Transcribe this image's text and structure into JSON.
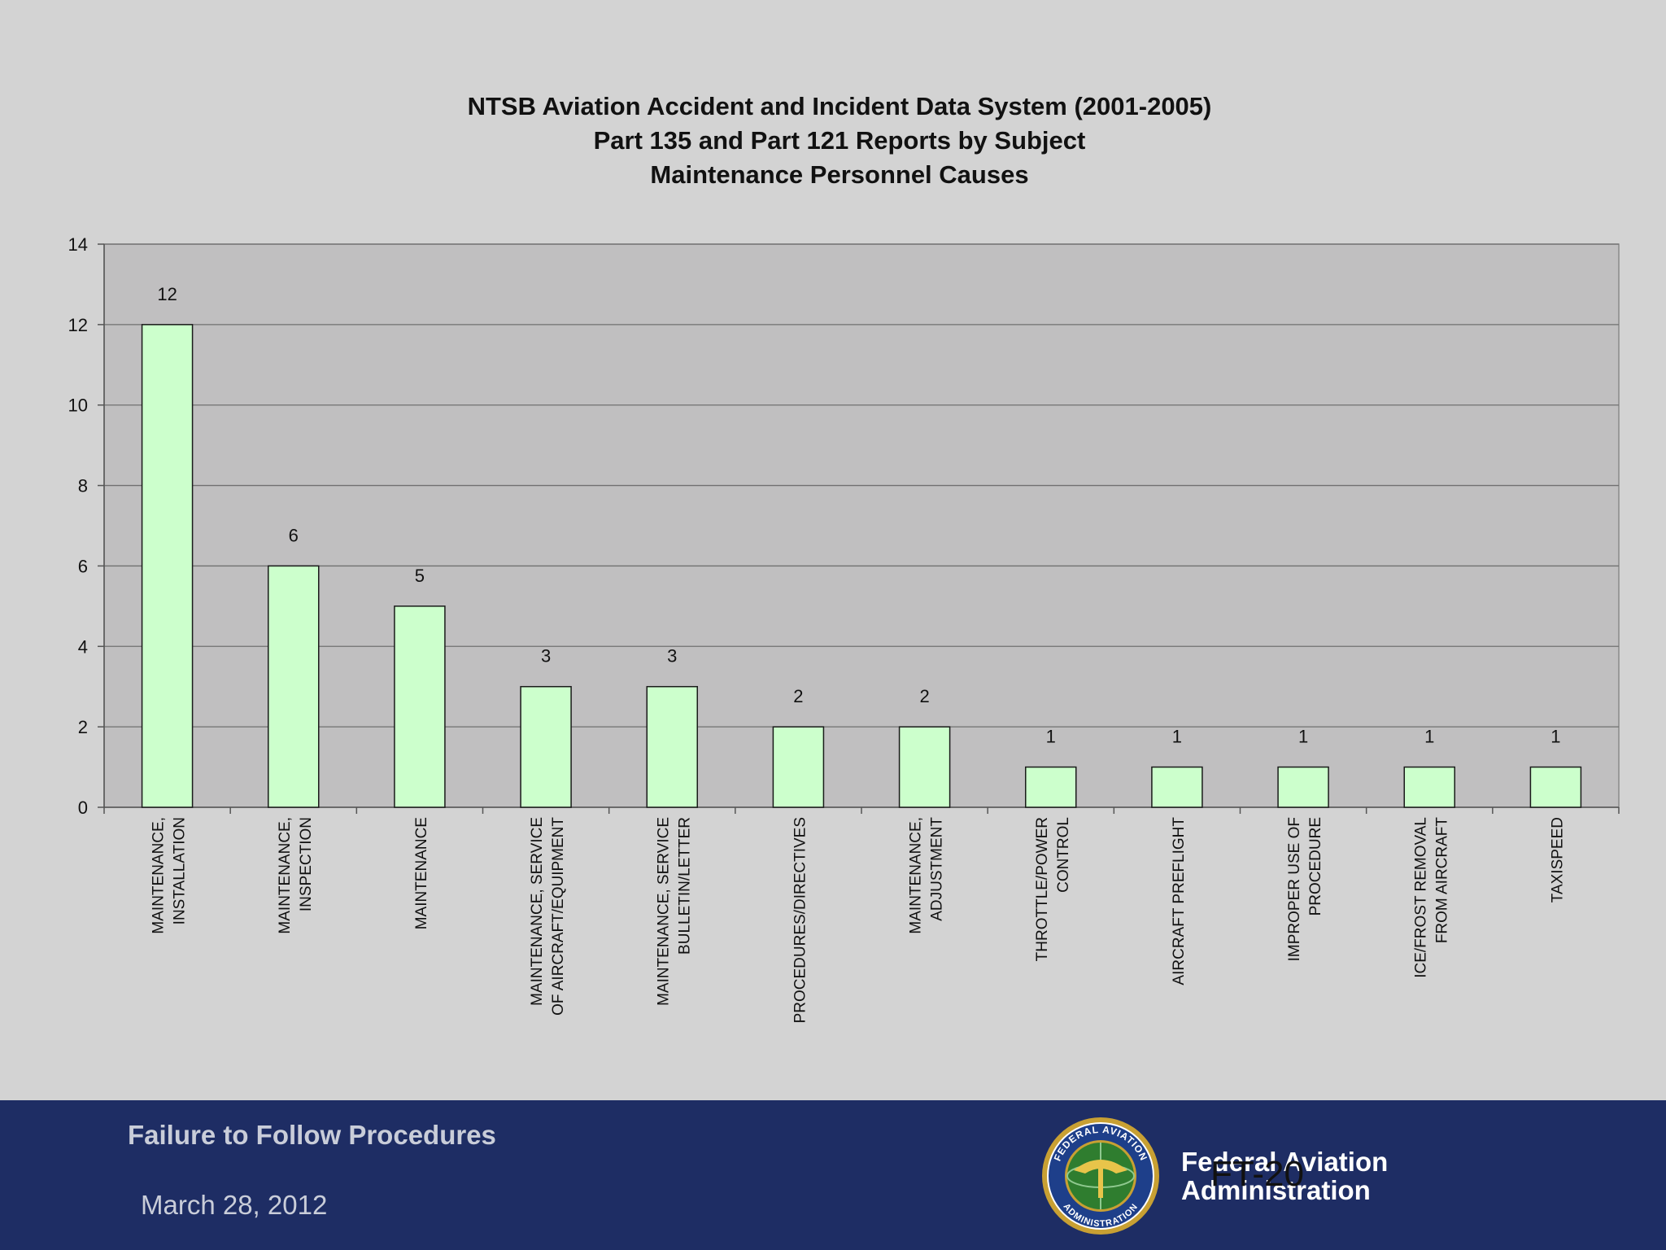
{
  "chart_data": {
    "type": "bar",
    "title": [
      "NTSB Aviation Accident and Incident Data System (2001-2005)",
      "Part 135 and Part 121 Reports by Subject",
      "Maintenance Personnel Causes"
    ],
    "categories": [
      [
        "MAINTENANCE,",
        "INSTALLATION"
      ],
      [
        "MAINTENANCE,",
        "INSPECTION"
      ],
      [
        "MAINTENANCE"
      ],
      [
        "MAINTENANCE, SERVICE",
        "OF AIRCRAFT/EQUIPMENT"
      ],
      [
        "MAINTENANCE, SERVICE",
        "BULLETIN/LETTER"
      ],
      [
        "PROCEDURES/DIRECTIVES"
      ],
      [
        "MAINTENANCE,",
        "ADJUSTMENT"
      ],
      [
        "THROTTLE/POWER",
        "CONTROL"
      ],
      [
        "AIRCRAFT PREFLIGHT"
      ],
      [
        "IMPROPER USE OF",
        "PROCEDURE"
      ],
      [
        "ICE/FROST REMOVAL",
        "FROM AIRCRAFT"
      ],
      [
        "TAXISPEED"
      ]
    ],
    "values": [
      12,
      6,
      5,
      3,
      3,
      2,
      2,
      1,
      1,
      1,
      1,
      1
    ],
    "data_labels": [
      "12",
      "6",
      "5",
      "3",
      "3",
      "2",
      "2",
      "1",
      "1",
      "1",
      "1",
      "1"
    ],
    "ylim": [
      0,
      14
    ],
    "yticks": [
      "0",
      "2",
      "4",
      "6",
      "8",
      "10",
      "12",
      "14"
    ],
    "grid": true,
    "legend": "none",
    "bar_color": "#ccffcc",
    "plot_background": "#c0bfc0"
  },
  "footer": {
    "title": "Failure to Follow Procedures",
    "date": "March 28, 2012",
    "org_line1": "Federal Aviation",
    "org_line2": "Administration",
    "seal_icon": "faa-seal-icon",
    "seal_top_text": "FEDERAL AVIATION",
    "seal_bottom_text": "ADMINISTRATION",
    "slide_number": "FT-20",
    "background": "#1e2d64"
  }
}
